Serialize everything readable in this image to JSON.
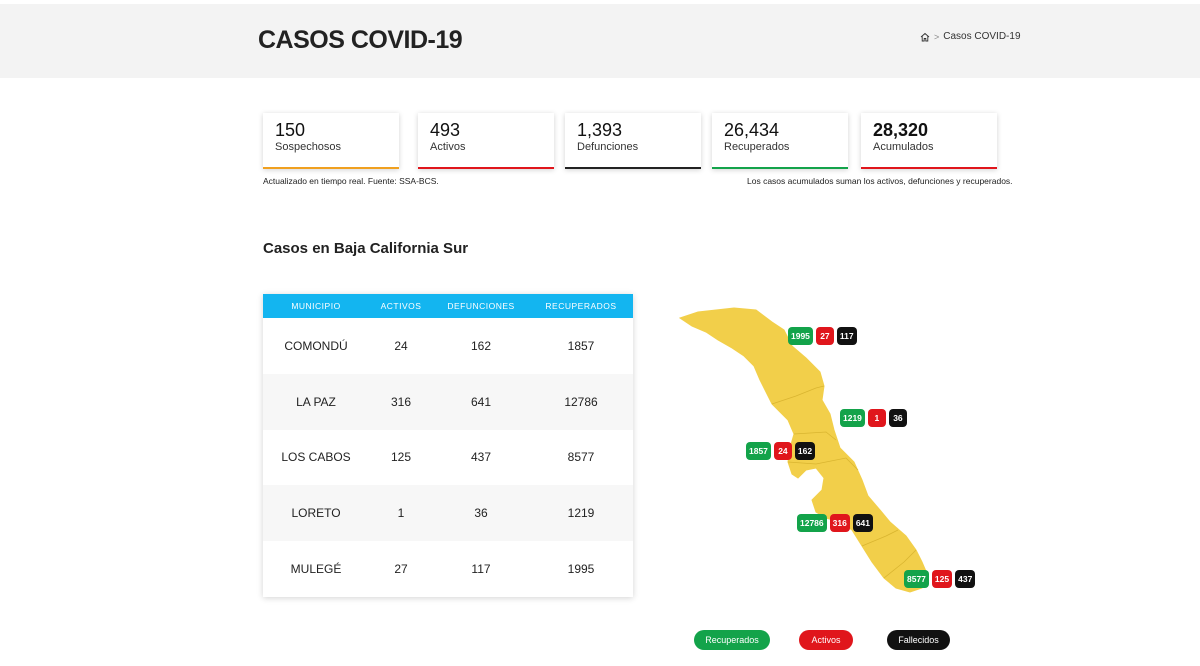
{
  "header": {
    "title": "CASOS COVID-19",
    "breadcrumb": {
      "current": "Casos COVID-19",
      "separator": ">"
    }
  },
  "stats": [
    {
      "value": "150",
      "label": "Sospechosos",
      "color": "#f0a020"
    },
    {
      "value": "493",
      "label": "Activos",
      "color": "#e0161c"
    },
    {
      "value": "1,393",
      "label": "Defunciones",
      "color": "#222222"
    },
    {
      "value": "26,434",
      "label": "Recuperados",
      "color": "#13a34a"
    },
    {
      "value": "28,320",
      "label": "Acumulados",
      "color": "#e0161c"
    }
  ],
  "notes": {
    "left": "Actualizado en tiempo real. Fuente: SSA-BCS.",
    "right": "Los casos acumulados suman los activos, defunciones y recuperados."
  },
  "section": {
    "title": "Casos en Baja California Sur"
  },
  "table": {
    "headers": [
      "MUNICIPIO",
      "ACTIVOS",
      "DEFUNCIONES",
      "RECUPERADOS"
    ],
    "rows": [
      {
        "municipio": "COMONDÚ",
        "activos": "24",
        "defunciones": "162",
        "recuperados": "1857"
      },
      {
        "municipio": "LA PAZ",
        "activos": "316",
        "defunciones": "641",
        "recuperados": "12786"
      },
      {
        "municipio": "LOS CABOS",
        "activos": "125",
        "defunciones": "437",
        "recuperados": "8577"
      },
      {
        "municipio": "LORETO",
        "activos": "1",
        "defunciones": "36",
        "recuperados": "1219"
      },
      {
        "municipio": "MULEGÉ",
        "activos": "27",
        "defunciones": "117",
        "recuperados": "1995"
      }
    ]
  },
  "map": {
    "fill_color": "#f2cf4a",
    "badges": {
      "mulege": {
        "recuperados": "1995",
        "activos": "27",
        "fallecidos": "117"
      },
      "loreto": {
        "recuperados": "1219",
        "activos": "1",
        "fallecidos": "36"
      },
      "comondu": {
        "recuperados": "1857",
        "activos": "24",
        "fallecidos": "162"
      },
      "lapaz": {
        "recuperados": "12786",
        "activos": "316",
        "fallecidos": "641"
      },
      "loscabos": {
        "recuperados": "8577",
        "activos": "125",
        "fallecidos": "437"
      }
    }
  },
  "legend": {
    "recuperados": "Recuperados",
    "activos": "Activos",
    "fallecidos": "Fallecidos"
  },
  "colors": {
    "green": "#13a34a",
    "red": "#e0161c",
    "black": "#111111",
    "accent": "#13b5f0"
  }
}
